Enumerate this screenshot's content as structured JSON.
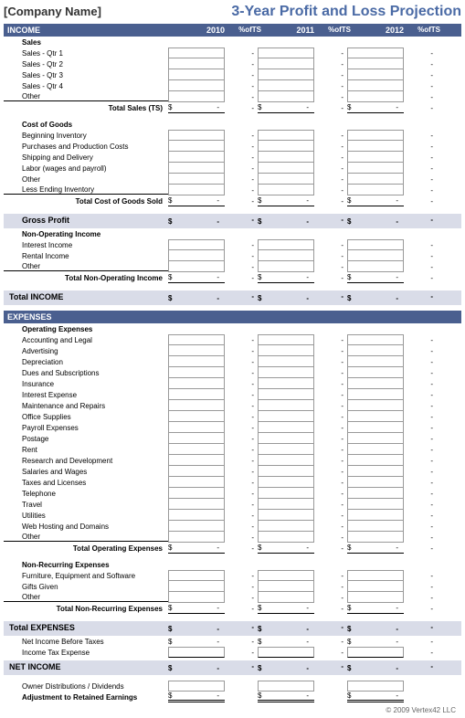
{
  "header": {
    "company": "[Company Name]",
    "title": "3-Year Profit and Loss Projection"
  },
  "years": [
    "2010",
    "2011",
    "2012"
  ],
  "pct_label": "%ofTS",
  "dash": "-",
  "dollar": "$",
  "sections": {
    "income_band": "INCOME",
    "expenses_band": "EXPENSES",
    "sales_group": {
      "header": "Sales",
      "items": [
        "Sales - Qtr 1",
        "Sales - Qtr 2",
        "Sales - Qtr 3",
        "Sales - Qtr 4",
        "Other"
      ],
      "total": "Total Sales (TS)"
    },
    "cogs_group": {
      "header": "Cost of Goods",
      "items": [
        "Beginning Inventory",
        "Purchases and Production Costs",
        "Shipping and Delivery",
        "Labor (wages and payroll)",
        "Other",
        "Less Ending Inventory"
      ],
      "total": "Total Cost of Goods Sold"
    },
    "gross_profit": "Gross Profit",
    "nonop_group": {
      "header": "Non-Operating Income",
      "items": [
        "Interest Income",
        "Rental Income",
        "Other"
      ],
      "total": "Total Non-Operating Income"
    },
    "total_income": "Total INCOME",
    "opex_group": {
      "header": "Operating Expenses",
      "items": [
        "Accounting and Legal",
        "Advertising",
        "Depreciation",
        "Dues and Subscriptions",
        "Insurance",
        "Interest Expense",
        "Maintenance and Repairs",
        "Office Supplies",
        "Payroll Expenses",
        "Postage",
        "Rent",
        "Research and Development",
        "Salaries and Wages",
        "Taxes and Licenses",
        "Telephone",
        "Travel",
        "Utilities",
        "Web Hosting and Domains",
        "Other"
      ],
      "total": "Total Operating Expenses"
    },
    "nonrec_group": {
      "header": "Non-Recurring Expenses",
      "items": [
        "Furniture, Equipment and Software",
        "Gifts Given",
        "Other"
      ],
      "total": "Total Non-Recurring Expenses"
    },
    "total_expenses": "Total EXPENSES",
    "net_before_tax": "Net Income Before Taxes",
    "tax_expense": "Income Tax Expense",
    "net_income": "NET INCOME",
    "distributions": "Owner Distributions / Dividends",
    "retained": "Adjustment to Retained Earnings"
  },
  "footer": "© 2009 Vertex42 LLC",
  "colors": {
    "band_bg": "#4a5f8f",
    "title_color": "#4a6aa5",
    "sum_bg": "#d9dce8",
    "border": "#999999"
  }
}
